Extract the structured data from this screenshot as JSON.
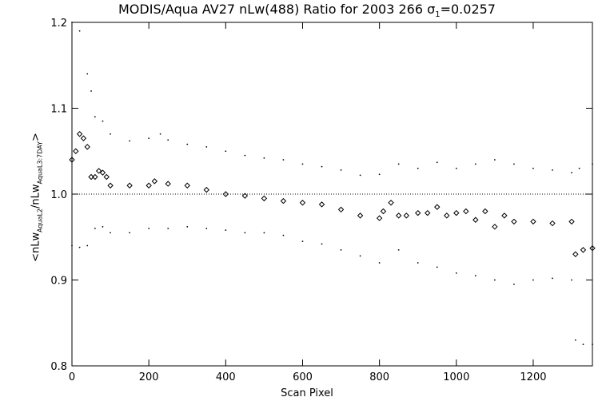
{
  "chart_data": {
    "type": "scatter",
    "title_parts": {
      "main": "MODIS/Aqua AV27 nLw(488) Ratio for 2003 266 ",
      "sigma": "σ",
      "sigma_sub": "1",
      "sigma_value": "=0.0257"
    },
    "xlabel": "Scan Pixel",
    "ylabel_parts": {
      "open": "<nLw",
      "sub1": "AquaL2",
      "mid": "/nLw",
      "sub2": "AquaL3:7DAY",
      "close": ">"
    },
    "xlim": [
      0,
      1354
    ],
    "ylim": [
      0.8,
      1.2
    ],
    "xticks": [
      0,
      200,
      400,
      600,
      800,
      1000,
      1200
    ],
    "yticks": [
      0.8,
      0.9,
      1.0,
      1.1,
      1.2
    ],
    "xtick_labels": [
      "0",
      "200",
      "400",
      "600",
      "800",
      "1000",
      "1200"
    ],
    "ytick_labels": [
      "0.8",
      "0.9",
      "1.0",
      "1.1",
      "1.2"
    ],
    "reference_line": 1.0,
    "series": [
      {
        "role": "mean",
        "marker": "diamond",
        "x": [
          0,
          10,
          20,
          30,
          40,
          50,
          60,
          70,
          80,
          90,
          100,
          150,
          200,
          215,
          250,
          300,
          350,
          400,
          450,
          500,
          550,
          600,
          650,
          700,
          750,
          800,
          810,
          830,
          850,
          870,
          900,
          925,
          950,
          975,
          1000,
          1025,
          1050,
          1075,
          1100,
          1125,
          1150,
          1200,
          1250,
          1300,
          1310,
          1330,
          1354
        ],
        "values": [
          1.04,
          1.05,
          1.07,
          1.065,
          1.055,
          1.02,
          1.02,
          1.027,
          1.025,
          1.02,
          1.01,
          1.01,
          1.01,
          1.015,
          1.012,
          1.01,
          1.005,
          1.0,
          0.998,
          0.995,
          0.992,
          0.99,
          0.988,
          0.982,
          0.975,
          0.972,
          0.98,
          0.99,
          0.975,
          0.975,
          0.978,
          0.978,
          0.985,
          0.975,
          0.978,
          0.98,
          0.97,
          0.98,
          0.962,
          0.975,
          0.968,
          0.968,
          0.966,
          0.968,
          0.93,
          0.935,
          0.937
        ]
      },
      {
        "role": "upper",
        "marker": "dot",
        "x": [
          0,
          20,
          40,
          50,
          60,
          80,
          100,
          150,
          200,
          230,
          250,
          300,
          350,
          400,
          450,
          500,
          550,
          600,
          650,
          700,
          750,
          800,
          850,
          900,
          950,
          1000,
          1050,
          1100,
          1150,
          1200,
          1250,
          1300,
          1320,
          1354
        ],
        "values": [
          1.2,
          1.19,
          1.14,
          1.12,
          1.09,
          1.085,
          1.07,
          1.062,
          1.065,
          1.07,
          1.063,
          1.058,
          1.055,
          1.05,
          1.045,
          1.042,
          1.04,
          1.035,
          1.032,
          1.028,
          1.022,
          1.023,
          1.035,
          1.03,
          1.037,
          1.03,
          1.035,
          1.04,
          1.035,
          1.03,
          1.028,
          1.025,
          1.03,
          1.035
        ]
      },
      {
        "role": "lower",
        "marker": "dot",
        "x": [
          0,
          20,
          40,
          60,
          80,
          100,
          150,
          200,
          250,
          300,
          350,
          400,
          450,
          500,
          550,
          600,
          650,
          700,
          750,
          800,
          850,
          900,
          950,
          1000,
          1050,
          1100,
          1150,
          1200,
          1250,
          1300,
          1310,
          1330,
          1354
        ],
        "values": [
          0.94,
          0.938,
          0.94,
          0.96,
          0.962,
          0.955,
          0.955,
          0.96,
          0.96,
          0.962,
          0.96,
          0.958,
          0.955,
          0.955,
          0.952,
          0.945,
          0.942,
          0.935,
          0.928,
          0.92,
          0.935,
          0.92,
          0.915,
          0.908,
          0.905,
          0.9,
          0.895,
          0.9,
          0.902,
          0.9,
          0.83,
          0.825,
          0.825
        ]
      }
    ]
  }
}
